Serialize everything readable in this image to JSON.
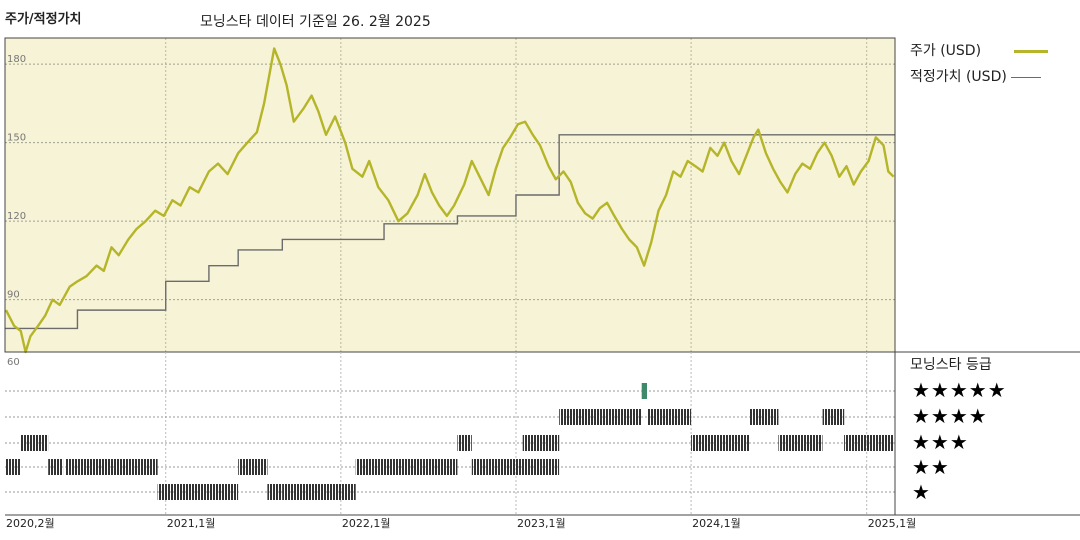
{
  "header": {
    "left_title": "주가/적정가치",
    "center_title": "모닝스타 데이터 기준일 26. 2월 2025"
  },
  "legend": {
    "price_label": "주가 (USD)",
    "fair_value_label": "적정가치 (USD)",
    "price_color": "#b5b52a",
    "fair_value_color": "#6b6b6b"
  },
  "rating": {
    "title": "모닝스타 등급",
    "levels": [
      "★★★★★",
      "★★★★",
      "★★★",
      "★★",
      "★"
    ]
  },
  "chart_data": [
    {
      "type": "line",
      "title": "",
      "xlabel": "",
      "ylabel": "",
      "ylim": [
        70,
        190
      ],
      "yticks": [
        180,
        150,
        120,
        90
      ],
      "xticks": [
        "2020,2월",
        "2021,1월",
        "2022,1월",
        "2023,1월",
        "2024,1월",
        "2025,1월"
      ],
      "xrange": [
        "2020-02",
        "2025-03"
      ],
      "background_color": "#f7f3d6",
      "grid": true,
      "series": [
        {
          "name": "주가 (USD)",
          "color": "#b5b52a",
          "points": [
            [
              "2020-02-03",
              86
            ],
            [
              "2020-02-20",
              80
            ],
            [
              "2020-03-05",
              78
            ],
            [
              "2020-03-15",
              70
            ],
            [
              "2020-03-25",
              76
            ],
            [
              "2020-04-10",
              80
            ],
            [
              "2020-04-25",
              84
            ],
            [
              "2020-05-10",
              90
            ],
            [
              "2020-05-25",
              88
            ],
            [
              "2020-06-15",
              95
            ],
            [
              "2020-07-01",
              97
            ],
            [
              "2020-07-20",
              99
            ],
            [
              "2020-08-10",
              103
            ],
            [
              "2020-08-25",
              101
            ],
            [
              "2020-09-10",
              110
            ],
            [
              "2020-09-25",
              107
            ],
            [
              "2020-10-15",
              113
            ],
            [
              "2020-11-01",
              117
            ],
            [
              "2020-11-20",
              120
            ],
            [
              "2020-12-10",
              124
            ],
            [
              "2020-12-28",
              122
            ],
            [
              "2021-01-15",
              128
            ],
            [
              "2021-02-01",
              126
            ],
            [
              "2021-02-20",
              133
            ],
            [
              "2021-03-10",
              131
            ],
            [
              "2021-04-01",
              139
            ],
            [
              "2021-04-20",
              142
            ],
            [
              "2021-05-10",
              138
            ],
            [
              "2021-06-01",
              146
            ],
            [
              "2021-06-20",
              150
            ],
            [
              "2021-07-10",
              154
            ],
            [
              "2021-07-25",
              165
            ],
            [
              "2021-08-05",
              176
            ],
            [
              "2021-08-15",
              186
            ],
            [
              "2021-08-28",
              180
            ],
            [
              "2021-09-10",
              172
            ],
            [
              "2021-09-25",
              158
            ],
            [
              "2021-10-15",
              163
            ],
            [
              "2021-11-01",
              168
            ],
            [
              "2021-11-15",
              162
            ],
            [
              "2021-12-01",
              153
            ],
            [
              "2021-12-20",
              160
            ],
            [
              "2022-01-10",
              150
            ],
            [
              "2022-01-25",
              140
            ],
            [
              "2022-02-15",
              137
            ],
            [
              "2022-03-01",
              143
            ],
            [
              "2022-03-20",
              133
            ],
            [
              "2022-04-10",
              128
            ],
            [
              "2022-05-01",
              120
            ],
            [
              "2022-05-20",
              123
            ],
            [
              "2022-06-10",
              130
            ],
            [
              "2022-06-25",
              138
            ],
            [
              "2022-07-10",
              131
            ],
            [
              "2022-07-25",
              126
            ],
            [
              "2022-08-10",
              122
            ],
            [
              "2022-08-25",
              126
            ],
            [
              "2022-09-15",
              134
            ],
            [
              "2022-10-01",
              143
            ],
            [
              "2022-10-20",
              136
            ],
            [
              "2022-11-05",
              130
            ],
            [
              "2022-11-20",
              140
            ],
            [
              "2022-12-05",
              148
            ],
            [
              "2022-12-20",
              152
            ],
            [
              "2023-01-05",
              157
            ],
            [
              "2023-01-20",
              158
            ],
            [
              "2023-02-05",
              153
            ],
            [
              "2023-02-20",
              149
            ],
            [
              "2023-03-10",
              141
            ],
            [
              "2023-03-25",
              136
            ],
            [
              "2023-04-10",
              139
            ],
            [
              "2023-04-25",
              135
            ],
            [
              "2023-05-10",
              127
            ],
            [
              "2023-05-25",
              123
            ],
            [
              "2023-06-10",
              121
            ],
            [
              "2023-06-25",
              125
            ],
            [
              "2023-07-10",
              127
            ],
            [
              "2023-07-25",
              122
            ],
            [
              "2023-08-10",
              117
            ],
            [
              "2023-08-25",
              113
            ],
            [
              "2023-09-10",
              110
            ],
            [
              "2023-09-25",
              103
            ],
            [
              "2023-10-10",
              112
            ],
            [
              "2023-10-25",
              124
            ],
            [
              "2023-11-10",
              130
            ],
            [
              "2023-11-25",
              139
            ],
            [
              "2023-12-10",
              137
            ],
            [
              "2023-12-25",
              143
            ],
            [
              "2024-01-10",
              141
            ],
            [
              "2024-01-25",
              139
            ],
            [
              "2024-02-10",
              148
            ],
            [
              "2024-02-25",
              145
            ],
            [
              "2024-03-10",
              150
            ],
            [
              "2024-03-25",
              143
            ],
            [
              "2024-04-10",
              138
            ],
            [
              "2024-04-25",
              145
            ],
            [
              "2024-05-10",
              152
            ],
            [
              "2024-05-20",
              155
            ],
            [
              "2024-06-05",
              146
            ],
            [
              "2024-06-20",
              140
            ],
            [
              "2024-07-05",
              135
            ],
            [
              "2024-07-20",
              131
            ],
            [
              "2024-08-05",
              138
            ],
            [
              "2024-08-20",
              142
            ],
            [
              "2024-09-05",
              140
            ],
            [
              "2024-09-20",
              146
            ],
            [
              "2024-10-05",
              150
            ],
            [
              "2024-10-20",
              145
            ],
            [
              "2024-11-05",
              137
            ],
            [
              "2024-11-20",
              141
            ],
            [
              "2024-12-05",
              134
            ],
            [
              "2024-12-20",
              139
            ],
            [
              "2025-01-05",
              143
            ],
            [
              "2025-01-20",
              152
            ],
            [
              "2025-02-05",
              149
            ],
            [
              "2025-02-15",
              139
            ],
            [
              "2025-02-26",
              137
            ]
          ]
        },
        {
          "name": "적정가치 (USD)",
          "color": "#6b6b6b",
          "step": true,
          "points": [
            [
              "2020-02-01",
              79
            ],
            [
              "2020-07-01",
              86
            ],
            [
              "2021-01-01",
              97
            ],
            [
              "2021-04-01",
              103
            ],
            [
              "2021-06-01",
              109
            ],
            [
              "2021-09-01",
              113
            ],
            [
              "2022-04-01",
              119
            ],
            [
              "2022-09-01",
              122
            ],
            [
              "2023-01-01",
              130
            ],
            [
              "2023-04-01",
              153
            ],
            [
              "2025-03-01",
              153
            ]
          ]
        }
      ]
    },
    {
      "type": "table",
      "title": "",
      "ylabel": "",
      "top_tick_label": "60",
      "levels": [
        5,
        4,
        3,
        2,
        1
      ],
      "bar_color": "#333333",
      "highlight_color": "#3f8a6a",
      "rating_periods": [
        {
          "start": "2020-02-01",
          "end": "2020-03-05",
          "stars": 2
        },
        {
          "start": "2020-03-05",
          "end": "2020-05-01",
          "stars": 3
        },
        {
          "start": "2020-05-01",
          "end": "2020-06-01",
          "stars": 2
        },
        {
          "start": "2020-06-05",
          "end": "2020-12-15",
          "stars": 2
        },
        {
          "start": "2020-12-15",
          "end": "2021-01-15",
          "stars": 1
        },
        {
          "start": "2021-01-15",
          "end": "2021-06-01",
          "stars": 1
        },
        {
          "start": "2021-06-01",
          "end": "2021-08-01",
          "stars": 2
        },
        {
          "start": "2021-08-01",
          "end": "2021-09-01",
          "stars": 1
        },
        {
          "start": "2021-09-01",
          "end": "2022-02-01",
          "stars": 1
        },
        {
          "start": "2022-02-01",
          "end": "2022-09-01",
          "stars": 2
        },
        {
          "start": "2022-09-01",
          "end": "2022-10-01",
          "stars": 3
        },
        {
          "start": "2022-10-01",
          "end": "2022-11-01",
          "stars": 2
        },
        {
          "start": "2022-11-01",
          "end": "2023-04-01",
          "stars": 2
        },
        {
          "start": "2023-01-15",
          "end": "2023-04-01",
          "stars": 3
        },
        {
          "start": "2023-04-01",
          "end": "2023-09-20",
          "stars": 4
        },
        {
          "start": "2023-09-20",
          "end": "2023-10-01",
          "stars": 5
        },
        {
          "start": "2023-10-01",
          "end": "2024-01-01",
          "stars": 4
        },
        {
          "start": "2024-01-01",
          "end": "2024-05-01",
          "stars": 3
        },
        {
          "start": "2024-05-01",
          "end": "2024-07-01",
          "stars": 4
        },
        {
          "start": "2024-07-01",
          "end": "2024-10-01",
          "stars": 3
        },
        {
          "start": "2024-10-01",
          "end": "2024-11-15",
          "stars": 4
        },
        {
          "start": "2024-11-15",
          "end": "2025-02-26",
          "stars": 3
        }
      ]
    }
  ]
}
